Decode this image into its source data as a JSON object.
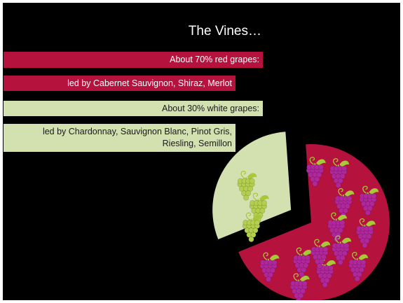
{
  "slide": {
    "title": "The Vines…",
    "bars": [
      {
        "text": "About 70% red grapes:"
      },
      {
        "text": "led by Cabernet Sauvignon, Shiraz, Merlot"
      },
      {
        "text": "About 30% white grapes:"
      },
      {
        "line1": "led by Chardonnay, Sauvignon Blanc, Pinot Gris,",
        "line2": "Riesling, Semillon"
      }
    ]
  },
  "chart_data": {
    "type": "pie",
    "title": "",
    "labels": [
      "red grapes",
      "white grapes"
    ],
    "values": [
      70,
      30
    ],
    "colors": [
      "#b5123e",
      "#d3e1b0"
    ],
    "exploded": "white grapes",
    "slice_icons": [
      "red-grape-cluster-icon",
      "white-grape-cluster-icon"
    ],
    "grid": false,
    "legend": "none"
  },
  "colors": {
    "background": "#000000",
    "red": "#b5123e",
    "green": "#d3e1b0",
    "red_grape": "#b0279c",
    "white_grape": "#b3cf4d",
    "leaf": "#a8c83a"
  }
}
